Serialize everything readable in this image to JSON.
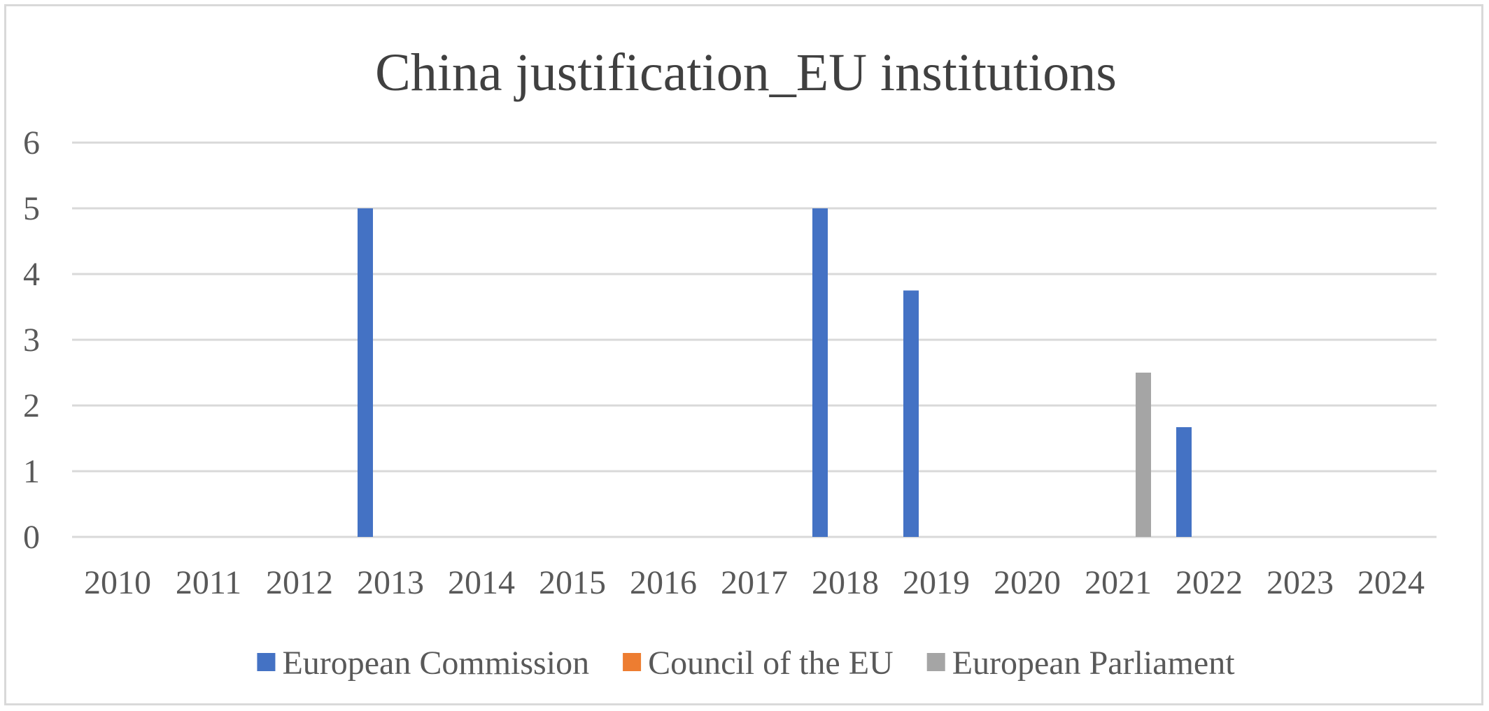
{
  "chart_data": {
    "type": "bar",
    "title": "China justification_EU institutions",
    "xlabel": "",
    "ylabel": "",
    "ylim": [
      0,
      6
    ],
    "yticks": [
      "0",
      "1",
      "2",
      "3",
      "4",
      "5",
      "6"
    ],
    "grid": true,
    "legend_position": "bottom",
    "categories": [
      "2010",
      "2011",
      "2012",
      "2013",
      "2014",
      "2015",
      "2016",
      "2017",
      "2018",
      "2019",
      "2020",
      "2021",
      "2022",
      "2023",
      "2024"
    ],
    "series": [
      {
        "name": "European Commission",
        "color": "#4472c4",
        "values": [
          0,
          0,
          0,
          5,
          0,
          0,
          0,
          0,
          5,
          3.75,
          0,
          0,
          1.67,
          0,
          0
        ]
      },
      {
        "name": "Council of the EU",
        "color": "#ed7d31",
        "values": [
          0,
          0,
          0,
          0,
          0,
          0,
          0,
          0,
          0,
          0,
          0,
          0,
          0,
          0,
          0
        ]
      },
      {
        "name": "European Parliament",
        "color": "#a5a5a5",
        "values": [
          0,
          0,
          0,
          0,
          0,
          0,
          0,
          0,
          0,
          0,
          0,
          2.5,
          0,
          0,
          0
        ]
      }
    ]
  }
}
